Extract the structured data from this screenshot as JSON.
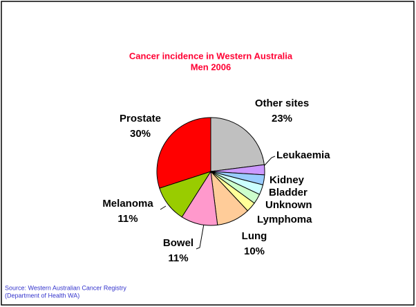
{
  "chart_data": {
    "type": "pie",
    "title": "Cancer incidence in Western Australia",
    "subtitle": "Men 2006",
    "categories": [
      "Other sites",
      "Leukaemia",
      "Kidney",
      "Bladder",
      "Unknown",
      "Lymphoma",
      "Lung",
      "Bowel",
      "Melanoma",
      "Prostate"
    ],
    "values": [
      23,
      3,
      3,
      3,
      3,
      3,
      10,
      11,
      11,
      30
    ],
    "value_labels": [
      "23%",
      null,
      null,
      null,
      null,
      null,
      "10%",
      "11%",
      "11%",
      "30%"
    ],
    "colors": [
      "#c0c0c0",
      "#cc99ff",
      "#99ccff",
      "#ccffff",
      "#ccffcc",
      "#ffff99",
      "#ffcc99",
      "#ff99cc",
      "#99cc00",
      "#ff0000"
    ],
    "source": [
      "Source: Western Australian Cancer Registry",
      "(Department of Health WA)"
    ]
  }
}
